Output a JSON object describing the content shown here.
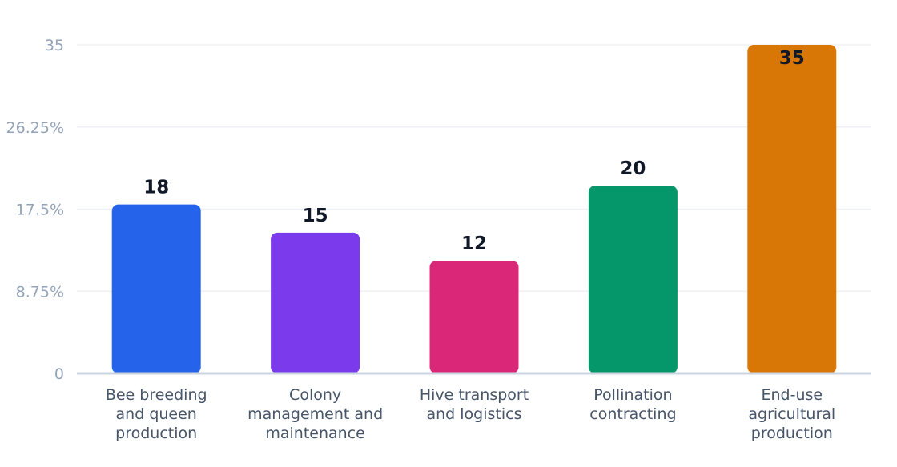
{
  "chart_data": {
    "type": "bar",
    "title": "",
    "xlabel": "",
    "ylabel": "",
    "categories": [
      [
        "Bee breeding",
        "and queen",
        "production"
      ],
      [
        "Colony",
        "management and",
        "maintenance"
      ],
      [
        "Hive transport",
        "and logistics"
      ],
      [
        "Pollination",
        "contracting"
      ],
      [
        "End-use",
        "agricultural",
        "production"
      ]
    ],
    "values": [
      18,
      15,
      12,
      20,
      35
    ],
    "value_labels": [
      "18",
      "15",
      "12",
      "20",
      "35"
    ],
    "colors": [
      "#2563eb",
      "#7c3aed",
      "#db2777",
      "#059669",
      "#d97706"
    ],
    "y_ticks": [
      0,
      8.75,
      17.5,
      26.25,
      35
    ],
    "y_tick_labels": [
      "0",
      "8.75%",
      "17.5%",
      "26.25%",
      "35"
    ],
    "ylim": [
      0,
      35
    ],
    "grid": true,
    "legend": "none"
  }
}
